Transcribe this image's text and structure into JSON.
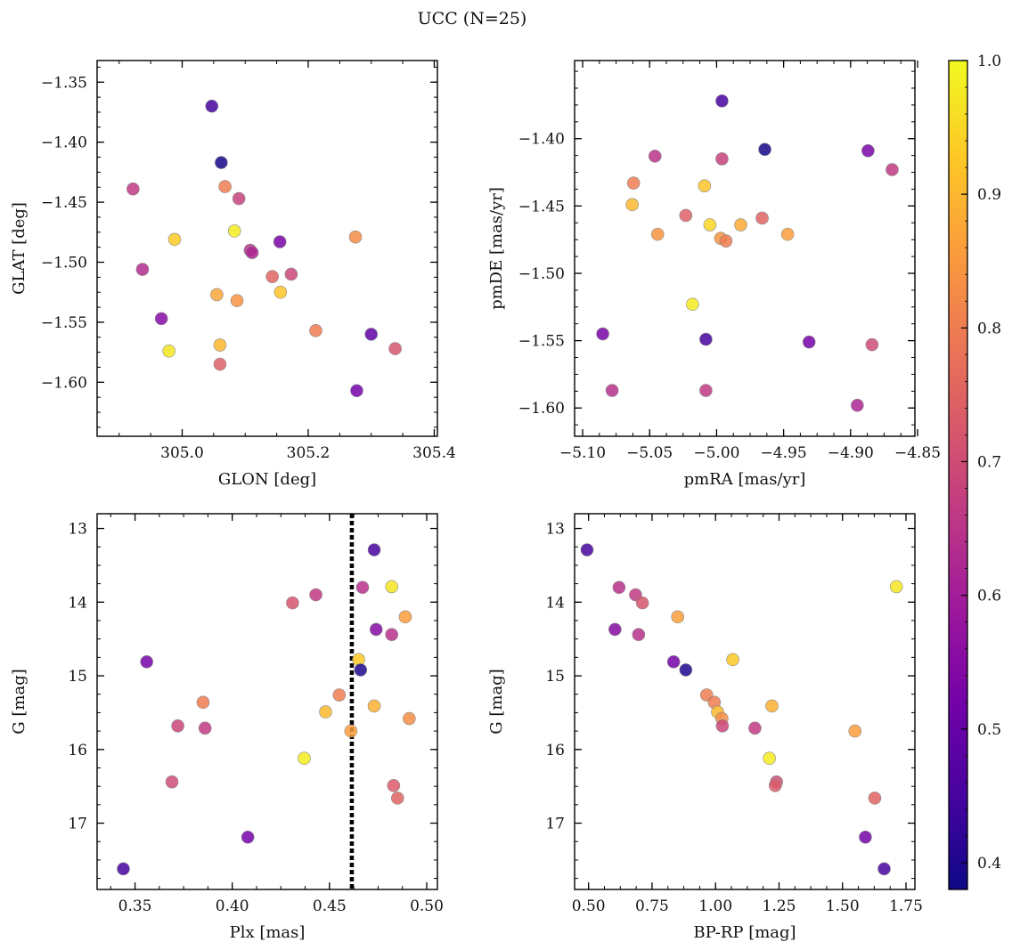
{
  "chart_data": {
    "type": "scatter",
    "title": "UCC (N=25)",
    "colorbar": {
      "range": [
        0.38,
        1.0
      ],
      "ticks": [
        0.4,
        0.5,
        0.6,
        0.7,
        0.8,
        0.9,
        1.0
      ],
      "tick_labels": [
        "0.4",
        "0.5",
        "0.6",
        "0.7",
        "0.8",
        "0.9",
        "1.0"
      ],
      "colormap": "plasma",
      "colormap_stops": [
        "#0d0887",
        "#46039f",
        "#7201a8",
        "#9c179e",
        "#bd3786",
        "#d8576b",
        "#ed7953",
        "#fb9f3a",
        "#fdca26",
        "#f0f921"
      ]
    },
    "panels": [
      {
        "name": "position",
        "xlabel": "GLON [deg]",
        "ylabel": "GLAT [deg]",
        "xlim": [
          304.865,
          305.405
        ],
        "ylim": [
          -1.645,
          -1.332
        ],
        "y_inverted": false,
        "xticks": [
          305.0,
          305.2,
          305.4
        ],
        "xtick_labels": [
          "305.0",
          "305.2",
          "305.4"
        ],
        "yticks": [
          -1.35,
          -1.4,
          -1.45,
          -1.5,
          -1.55,
          -1.6
        ],
        "ytick_labels": [
          "−1.35",
          "−1.40",
          "−1.45",
          "−1.50",
          "−1.55",
          "−1.60"
        ],
        "points": [
          {
            "x": 305.047,
            "y": -1.37,
            "c": 0.45
          },
          {
            "x": 305.062,
            "y": -1.417,
            "c": 0.39
          },
          {
            "x": 304.922,
            "y": -1.439,
            "c": 0.66
          },
          {
            "x": 305.068,
            "y": -1.437,
            "c": 0.8
          },
          {
            "x": 305.09,
            "y": -1.447,
            "c": 0.68
          },
          {
            "x": 305.083,
            "y": -1.474,
            "c": 0.98
          },
          {
            "x": 304.988,
            "y": -1.481,
            "c": 0.93
          },
          {
            "x": 305.155,
            "y": -1.483,
            "c": 0.53
          },
          {
            "x": 305.275,
            "y": -1.479,
            "c": 0.83
          },
          {
            "x": 305.108,
            "y": -1.49,
            "c": 0.64
          },
          {
            "x": 305.111,
            "y": -1.492,
            "c": 0.62
          },
          {
            "x": 304.937,
            "y": -1.506,
            "c": 0.63
          },
          {
            "x": 305.143,
            "y": -1.512,
            "c": 0.75
          },
          {
            "x": 305.173,
            "y": -1.51,
            "c": 0.69
          },
          {
            "x": 305.055,
            "y": -1.527,
            "c": 0.87
          },
          {
            "x": 305.156,
            "y": -1.525,
            "c": 0.92
          },
          {
            "x": 305.087,
            "y": -1.532,
            "c": 0.84
          },
          {
            "x": 304.967,
            "y": -1.547,
            "c": 0.55
          },
          {
            "x": 305.212,
            "y": -1.557,
            "c": 0.8
          },
          {
            "x": 305.3,
            "y": -1.56,
            "c": 0.49
          },
          {
            "x": 305.06,
            "y": -1.569,
            "c": 0.9
          },
          {
            "x": 304.979,
            "y": -1.574,
            "c": 0.97
          },
          {
            "x": 305.338,
            "y": -1.572,
            "c": 0.72
          },
          {
            "x": 305.06,
            "y": -1.585,
            "c": 0.74
          },
          {
            "x": 305.277,
            "y": -1.607,
            "c": 0.52
          }
        ]
      },
      {
        "name": "proper-motion",
        "xlabel": "pmRA [mas/yr]",
        "ylabel": "pmDE [mas/yr]",
        "xlim": [
          -5.106,
          -4.852
        ],
        "ylim": [
          -1.621,
          -1.342
        ],
        "y_inverted": false,
        "xticks": [
          -5.1,
          -5.05,
          -5.0,
          -4.95,
          -4.9,
          -4.85
        ],
        "xtick_labels": [
          "−5.10",
          "−5.05",
          "−5.00",
          "−4.95",
          "−4.90",
          "−4.85"
        ],
        "yticks": [
          -1.4,
          -1.45,
          -1.5,
          -1.55,
          -1.6
        ],
        "ytick_labels": [
          "−1.40",
          "−1.45",
          "−1.50",
          "−1.55",
          "−1.60"
        ],
        "points": [
          {
            "x": -4.996,
            "y": -1.372,
            "c": 0.45
          },
          {
            "x": -4.964,
            "y": -1.408,
            "c": 0.39
          },
          {
            "x": -4.887,
            "y": -1.409,
            "c": 0.53
          },
          {
            "x": -5.046,
            "y": -1.413,
            "c": 0.65
          },
          {
            "x": -4.996,
            "y": -1.415,
            "c": 0.68
          },
          {
            "x": -4.869,
            "y": -1.423,
            "c": 0.66
          },
          {
            "x": -5.062,
            "y": -1.433,
            "c": 0.8
          },
          {
            "x": -5.009,
            "y": -1.435,
            "c": 0.92
          },
          {
            "x": -5.063,
            "y": -1.449,
            "c": 0.9
          },
          {
            "x": -5.023,
            "y": -1.457,
            "c": 0.74
          },
          {
            "x": -4.966,
            "y": -1.459,
            "c": 0.75
          },
          {
            "x": -5.005,
            "y": -1.464,
            "c": 0.95
          },
          {
            "x": -4.982,
            "y": -1.464,
            "c": 0.88
          },
          {
            "x": -5.044,
            "y": -1.471,
            "c": 0.84
          },
          {
            "x": -4.947,
            "y": -1.471,
            "c": 0.86
          },
          {
            "x": -4.997,
            "y": -1.474,
            "c": 0.84
          },
          {
            "x": -4.993,
            "y": -1.476,
            "c": 0.8
          },
          {
            "x": -5.018,
            "y": -1.523,
            "c": 0.98
          },
          {
            "x": -5.085,
            "y": -1.545,
            "c": 0.53
          },
          {
            "x": -5.008,
            "y": -1.549,
            "c": 0.45
          },
          {
            "x": -4.931,
            "y": -1.551,
            "c": 0.52
          },
          {
            "x": -4.884,
            "y": -1.553,
            "c": 0.7
          },
          {
            "x": -5.078,
            "y": -1.587,
            "c": 0.64
          },
          {
            "x": -5.008,
            "y": -1.587,
            "c": 0.66
          },
          {
            "x": -4.895,
            "y": -1.598,
            "c": 0.62
          }
        ]
      },
      {
        "name": "plx-magnitude",
        "xlabel": "Plx [mas]",
        "ylabel": "G [mag]",
        "xlim": [
          0.3305,
          0.5055
        ],
        "ylim": [
          12.8,
          17.9
        ],
        "y_inverted": true,
        "xticks": [
          0.35,
          0.4,
          0.45,
          0.5
        ],
        "xtick_labels": [
          "0.35",
          "0.40",
          "0.45",
          "0.50"
        ],
        "yticks": [
          13,
          14,
          15,
          16,
          17
        ],
        "ytick_labels": [
          "13",
          "14",
          "15",
          "16",
          "17"
        ],
        "vline": {
          "x": 0.4615,
          "style": "dotted"
        },
        "points": [
          {
            "x": 0.473,
            "y": 13.29,
            "c": 0.45
          },
          {
            "x": 0.467,
            "y": 13.8,
            "c": 0.64
          },
          {
            "x": 0.482,
            "y": 13.79,
            "c": 0.97
          },
          {
            "x": 0.443,
            "y": 13.9,
            "c": 0.66
          },
          {
            "x": 0.431,
            "y": 14.01,
            "c": 0.72
          },
          {
            "x": 0.489,
            "y": 14.2,
            "c": 0.86
          },
          {
            "x": 0.474,
            "y": 14.37,
            "c": 0.55
          },
          {
            "x": 0.482,
            "y": 14.44,
            "c": 0.64
          },
          {
            "x": 0.465,
            "y": 14.78,
            "c": 0.93
          },
          {
            "x": 0.356,
            "y": 14.81,
            "c": 0.52
          },
          {
            "x": 0.466,
            "y": 14.92,
            "c": 0.4
          },
          {
            "x": 0.455,
            "y": 15.26,
            "c": 0.8
          },
          {
            "x": 0.385,
            "y": 15.36,
            "c": 0.8
          },
          {
            "x": 0.473,
            "y": 15.41,
            "c": 0.89
          },
          {
            "x": 0.448,
            "y": 15.49,
            "c": 0.9
          },
          {
            "x": 0.491,
            "y": 15.58,
            "c": 0.83
          },
          {
            "x": 0.372,
            "y": 15.68,
            "c": 0.69
          },
          {
            "x": 0.386,
            "y": 15.71,
            "c": 0.66
          },
          {
            "x": 0.461,
            "y": 15.75,
            "c": 0.86
          },
          {
            "x": 0.437,
            "y": 16.12,
            "c": 0.98
          },
          {
            "x": 0.369,
            "y": 16.44,
            "c": 0.7
          },
          {
            "x": 0.483,
            "y": 16.49,
            "c": 0.73
          },
          {
            "x": 0.485,
            "y": 16.66,
            "c": 0.75
          },
          {
            "x": 0.408,
            "y": 17.19,
            "c": 0.52
          },
          {
            "x": 0.344,
            "y": 17.62,
            "c": 0.45
          }
        ]
      },
      {
        "name": "color-magnitude",
        "xlabel": "BP-RP [mag]",
        "ylabel": "G [mag]",
        "xlim": [
          0.445,
          1.785
        ],
        "ylim": [
          12.8,
          17.9
        ],
        "y_inverted": true,
        "xticks": [
          0.5,
          0.75,
          1.0,
          1.25,
          1.5,
          1.75
        ],
        "xtick_labels": [
          "0.50",
          "0.75",
          "1.00",
          "1.25",
          "1.50",
          "1.75"
        ],
        "yticks": [
          13,
          14,
          15,
          16,
          17
        ],
        "ytick_labels": [
          "13",
          "14",
          "15",
          "16",
          "17"
        ],
        "points": [
          {
            "x": 0.494,
            "y": 13.29,
            "c": 0.45
          },
          {
            "x": 0.62,
            "y": 13.8,
            "c": 0.64
          },
          {
            "x": 0.685,
            "y": 13.9,
            "c": 0.66
          },
          {
            "x": 0.712,
            "y": 14.01,
            "c": 0.72
          },
          {
            "x": 1.712,
            "y": 13.79,
            "c": 0.97
          },
          {
            "x": 0.851,
            "y": 14.2,
            "c": 0.86
          },
          {
            "x": 0.604,
            "y": 14.37,
            "c": 0.55
          },
          {
            "x": 0.697,
            "y": 14.44,
            "c": 0.64
          },
          {
            "x": 0.835,
            "y": 14.81,
            "c": 0.52
          },
          {
            "x": 0.883,
            "y": 14.92,
            "c": 0.4
          },
          {
            "x": 1.068,
            "y": 14.78,
            "c": 0.93
          },
          {
            "x": 0.965,
            "y": 15.26,
            "c": 0.8
          },
          {
            "x": 0.995,
            "y": 15.36,
            "c": 0.8
          },
          {
            "x": 1.222,
            "y": 15.41,
            "c": 0.89
          },
          {
            "x": 1.008,
            "y": 15.49,
            "c": 0.9
          },
          {
            "x": 1.025,
            "y": 15.58,
            "c": 0.83
          },
          {
            "x": 1.027,
            "y": 15.68,
            "c": 0.69
          },
          {
            "x": 1.155,
            "y": 15.71,
            "c": 0.66
          },
          {
            "x": 1.549,
            "y": 15.75,
            "c": 0.86
          },
          {
            "x": 1.212,
            "y": 16.12,
            "c": 0.98
          },
          {
            "x": 1.24,
            "y": 16.44,
            "c": 0.7
          },
          {
            "x": 1.235,
            "y": 16.49,
            "c": 0.73
          },
          {
            "x": 1.627,
            "y": 16.66,
            "c": 0.75
          },
          {
            "x": 1.59,
            "y": 17.19,
            "c": 0.52
          },
          {
            "x": 1.664,
            "y": 17.62,
            "c": 0.45
          }
        ]
      }
    ]
  }
}
